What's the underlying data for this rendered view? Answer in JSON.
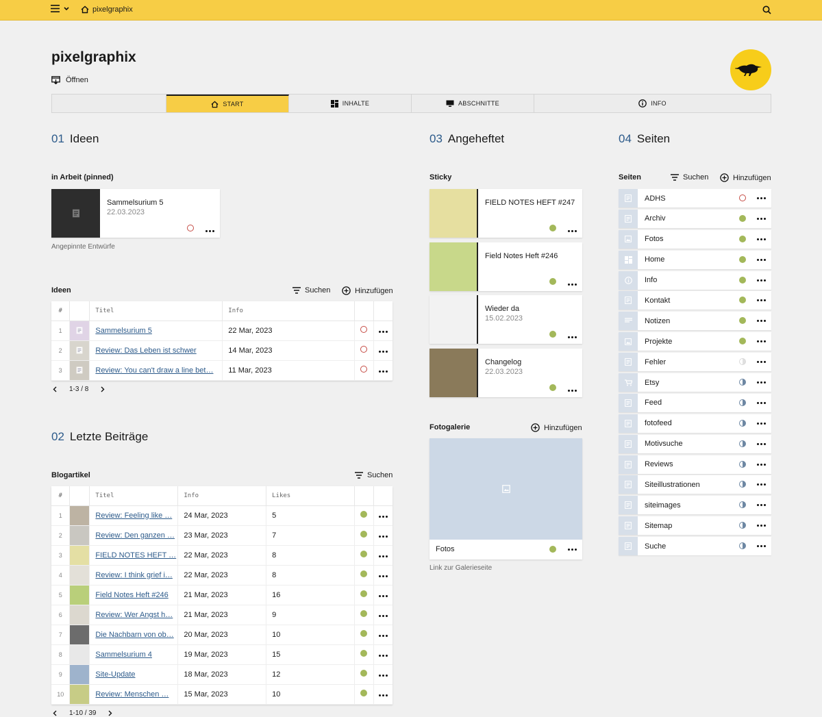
{
  "topbar": {
    "site_name": "pixelgraphix"
  },
  "header": {
    "title": "pixelgraphix",
    "open_label": "Öffnen"
  },
  "tabs": [
    {
      "label": "START",
      "icon": "home-icon",
      "active": true
    },
    {
      "label": "INHALTE",
      "icon": "grid-icon",
      "active": false
    },
    {
      "label": "ABSCHNITTE",
      "icon": "monitor-icon",
      "active": false
    },
    {
      "label": "INFO",
      "icon": "info-icon",
      "active": false
    }
  ],
  "sections": {
    "ideen": {
      "num": "01",
      "title": "Ideen"
    },
    "beitraege": {
      "num": "02",
      "title": "Letzte Beiträge"
    },
    "angeheftet": {
      "num": "03",
      "title": "Angeheftet"
    },
    "seiten": {
      "num": "04",
      "title": "Seiten"
    }
  },
  "pinned": {
    "heading": "in Arbeit (pinned)",
    "card": {
      "title": "Sammelsurium 5",
      "date": "22.03.2023",
      "status": "red"
    },
    "note": "Angepinnte Entwürfe"
  },
  "ideas": {
    "heading": "Ideen",
    "search_label": "Suchen",
    "add_label": "Hinzufügen",
    "columns": [
      "#",
      "Titel",
      "Info"
    ],
    "rows": [
      {
        "n": "1",
        "title": "Sammelsurium 5",
        "info": "22 Mar, 2023",
        "status": "red",
        "thumb": "#e0d4e6"
      },
      {
        "n": "2",
        "title": "Review: Das Leben ist schwer",
        "info": "14 Mar, 2023",
        "status": "red",
        "thumb": "#d8d5cd"
      },
      {
        "n": "3",
        "title": "Review: You can't draw a line bet…",
        "info": "11 Mar, 2023",
        "status": "red",
        "thumb": "#cfcbc2"
      }
    ],
    "pager": "1-3 / 8"
  },
  "blog": {
    "heading": "Blogartikel",
    "search_label": "Suchen",
    "columns": [
      "#",
      "Titel",
      "Info",
      "Likes"
    ],
    "rows": [
      {
        "n": "1",
        "title": "Review: Feeling like …",
        "info": "24 Mar, 2023",
        "likes": "5",
        "thumb": "#bdb3a3"
      },
      {
        "n": "2",
        "title": "Review: Den ganzen …",
        "info": "23 Mar, 2023",
        "likes": "7",
        "thumb": "#c9c7c1"
      },
      {
        "n": "3",
        "title": "FIELD NOTES HEFT …",
        "info": "22 Mar, 2023",
        "likes": "8",
        "thumb": "#e4dfa4"
      },
      {
        "n": "4",
        "title": "Review: I think grief i…",
        "info": "22 Mar, 2023",
        "likes": "8",
        "thumb": "#e3e0d8"
      },
      {
        "n": "5",
        "title": "Field Notes Heft #246",
        "info": "21 Mar, 2023",
        "likes": "16",
        "thumb": "#b9cf7a"
      },
      {
        "n": "6",
        "title": "Review: Wer Angst h…",
        "info": "21 Mar, 2023",
        "likes": "9",
        "thumb": "#dcd8cf"
      },
      {
        "n": "7",
        "title": "Die Nachbarn von ob…",
        "info": "20 Mar, 2023",
        "likes": "10",
        "thumb": "#6c6c6c"
      },
      {
        "n": "8",
        "title": "Sammelsurium 4",
        "info": "19 Mar, 2023",
        "likes": "15",
        "thumb": "#e8e8e8"
      },
      {
        "n": "9",
        "title": "Site-Update",
        "info": "18 Mar, 2023",
        "likes": "12",
        "thumb": "#9eb3cc"
      },
      {
        "n": "10",
        "title": "Review: Menschen …",
        "info": "15 Mar, 2023",
        "likes": "10",
        "thumb": "#c7cc86"
      }
    ],
    "pager": "1-10 / 39"
  },
  "sticky": {
    "heading": "Sticky",
    "cards": [
      {
        "title": "FIELD NOTES HEFT #247",
        "date": "",
        "thumb": "#e6dfa0"
      },
      {
        "title": "Field Notes Heft #246",
        "date": "",
        "thumb": "#c8d88a"
      },
      {
        "title": "Wieder da",
        "date": "15.02.2023",
        "thumb": "#f2f2f2"
      },
      {
        "title": "Changelog",
        "date": "22.03.2023",
        "thumb": "#8a7a5a"
      }
    ]
  },
  "gallery": {
    "heading": "Fotogalerie",
    "add_label": "Hinzufügen",
    "caption": "Fotos",
    "note": "Link zur Galerieseite"
  },
  "pages": {
    "heading": "Seiten",
    "search_label": "Suchen",
    "add_label": "Hinzufügen",
    "items": [
      {
        "label": "ADHS",
        "status": "red",
        "icon": "page-icon"
      },
      {
        "label": "Archiv",
        "status": "green",
        "icon": "page-icon"
      },
      {
        "label": "Fotos",
        "status": "green",
        "icon": "image-icon"
      },
      {
        "label": "Home",
        "status": "green",
        "icon": "grid-icon"
      },
      {
        "label": "Info",
        "status": "green",
        "icon": "info-icon"
      },
      {
        "label": "Kontakt",
        "status": "green",
        "icon": "page-icon"
      },
      {
        "label": "Notizen",
        "status": "green",
        "icon": "text-icon"
      },
      {
        "label": "Projekte",
        "status": "green",
        "icon": "image-icon"
      },
      {
        "label": "Fehler",
        "status": "faint",
        "icon": "page-icon"
      },
      {
        "label": "Etsy",
        "status": "half",
        "icon": "cart-icon"
      },
      {
        "label": "Feed",
        "status": "half",
        "icon": "page-icon"
      },
      {
        "label": "fotofeed",
        "status": "half",
        "icon": "page-icon"
      },
      {
        "label": "Motivsuche",
        "status": "half",
        "icon": "page-icon"
      },
      {
        "label": "Reviews",
        "status": "half",
        "icon": "page-icon"
      },
      {
        "label": "Siteillustrationen",
        "status": "half",
        "icon": "page-icon"
      },
      {
        "label": "siteimages",
        "status": "half",
        "icon": "page-icon"
      },
      {
        "label": "Sitemap",
        "status": "half",
        "icon": "page-icon"
      },
      {
        "label": "Suche",
        "status": "half",
        "icon": "page-icon"
      }
    ]
  },
  "colors": {
    "accent": "#f7cd45",
    "link": "#2c5a8a",
    "status_green": "#a3b85a",
    "status_red": "#c54b44"
  }
}
